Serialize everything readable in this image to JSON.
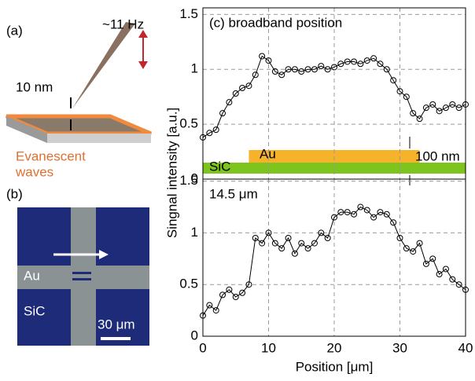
{
  "figure": {
    "panel_a": {
      "label": "(a)",
      "frequency": "~11 Hz",
      "gap": "10 nm",
      "waves": [
        "Evanescent",
        "waves"
      ]
    },
    "panel_b": {
      "label": "(b)",
      "au": "Au",
      "sic": "SiC",
      "scale": "30 μm"
    }
  },
  "chart_data": [
    {
      "type": "line",
      "title": "(c) broadband position",
      "ylabel": "Singnal intensity [a.u.]",
      "x": [
        0,
        1,
        2,
        3,
        4,
        5,
        6,
        7,
        8,
        9,
        10,
        11,
        12,
        13,
        14,
        15,
        16,
        17,
        18,
        19,
        20,
        21,
        22,
        23,
        24,
        25,
        26,
        27,
        28,
        29,
        30,
        31,
        32,
        33,
        34,
        35,
        36,
        37,
        38,
        39,
        40
      ],
      "series": [
        {
          "color": "#000000",
          "values": [
            0.38,
            0.42,
            0.45,
            0.6,
            0.7,
            0.78,
            0.83,
            0.85,
            0.95,
            1.12,
            1.08,
            0.98,
            0.95,
            1.0,
            1.0,
            0.98,
            1.0,
            1.0,
            1.03,
            1.0,
            1.02,
            1.05,
            1.07,
            1.07,
            1.05,
            1.08,
            1.1,
            1.05,
            1.0,
            0.9,
            0.8,
            0.75,
            0.6,
            0.55,
            0.65,
            0.68,
            0.62,
            0.65,
            0.68,
            0.65,
            0.68
          ]
        }
      ],
      "xlim": [
        0,
        40
      ],
      "xticks": [
        0,
        10,
        20,
        30,
        40
      ],
      "ylim": [
        0,
        1.56
      ],
      "yticks": [
        0,
        0.5,
        1,
        1.5
      ],
      "grid": true,
      "annotations": {
        "substrate": "SiC",
        "film": "Au",
        "thickness": "100 nm"
      }
    },
    {
      "type": "line",
      "title": "14.5 μm",
      "xlabel": "Position [μm]",
      "x": [
        0,
        1,
        2,
        3,
        4,
        5,
        6,
        7,
        8,
        9,
        10,
        11,
        12,
        13,
        14,
        15,
        16,
        17,
        18,
        19,
        20,
        21,
        22,
        23,
        24,
        25,
        26,
        27,
        28,
        29,
        30,
        31,
        32,
        33,
        34,
        35,
        36,
        37,
        38,
        39,
        40
      ],
      "series": [
        {
          "color": "#000000",
          "values": [
            0.2,
            0.3,
            0.25,
            0.4,
            0.45,
            0.38,
            0.42,
            0.5,
            0.95,
            0.9,
            1.0,
            0.9,
            0.85,
            0.95,
            0.8,
            0.9,
            0.85,
            0.9,
            1.0,
            0.95,
            1.15,
            1.2,
            1.2,
            1.18,
            1.25,
            1.22,
            1.15,
            1.2,
            1.18,
            1.1,
            0.95,
            0.85,
            0.82,
            0.9,
            0.7,
            0.75,
            0.6,
            0.65,
            0.55,
            0.5,
            0.45
          ]
        }
      ],
      "xlim": [
        0,
        40
      ],
      "xticks": [
        0,
        10,
        20,
        30,
        40
      ],
      "ylim": [
        0,
        1.52
      ],
      "yticks": [
        0,
        0.5,
        1,
        1.5
      ],
      "grid": true
    }
  ]
}
